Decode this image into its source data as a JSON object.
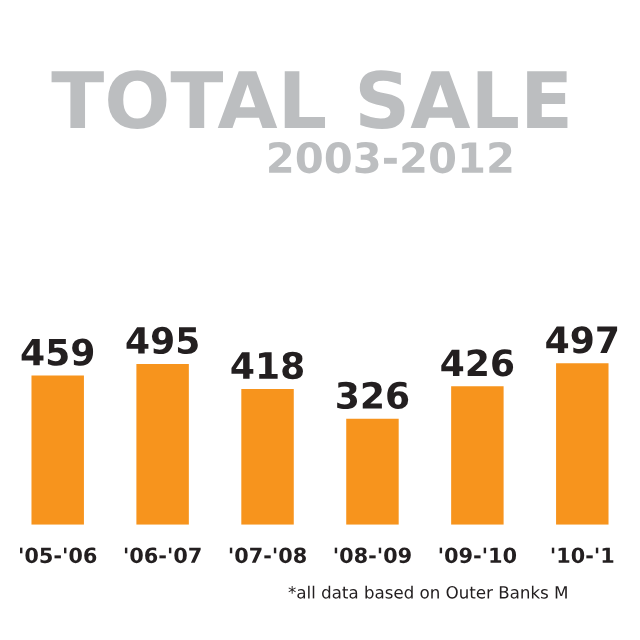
{
  "chart_data": {
    "type": "bar",
    "title": "TOTAL SALE",
    "subtitle": "2003-2012",
    "categories": [
      "'05-'06",
      "'06-'07",
      "'07-'08",
      "'08-'09",
      "'09-'10",
      "'10-'1"
    ],
    "values": [
      459,
      495,
      418,
      326,
      426,
      497
    ],
    "color": "#f7941d",
    "data_labels": true,
    "grid": false,
    "legend": false,
    "annotations": [
      "*all data based on Outer Banks M"
    ]
  }
}
